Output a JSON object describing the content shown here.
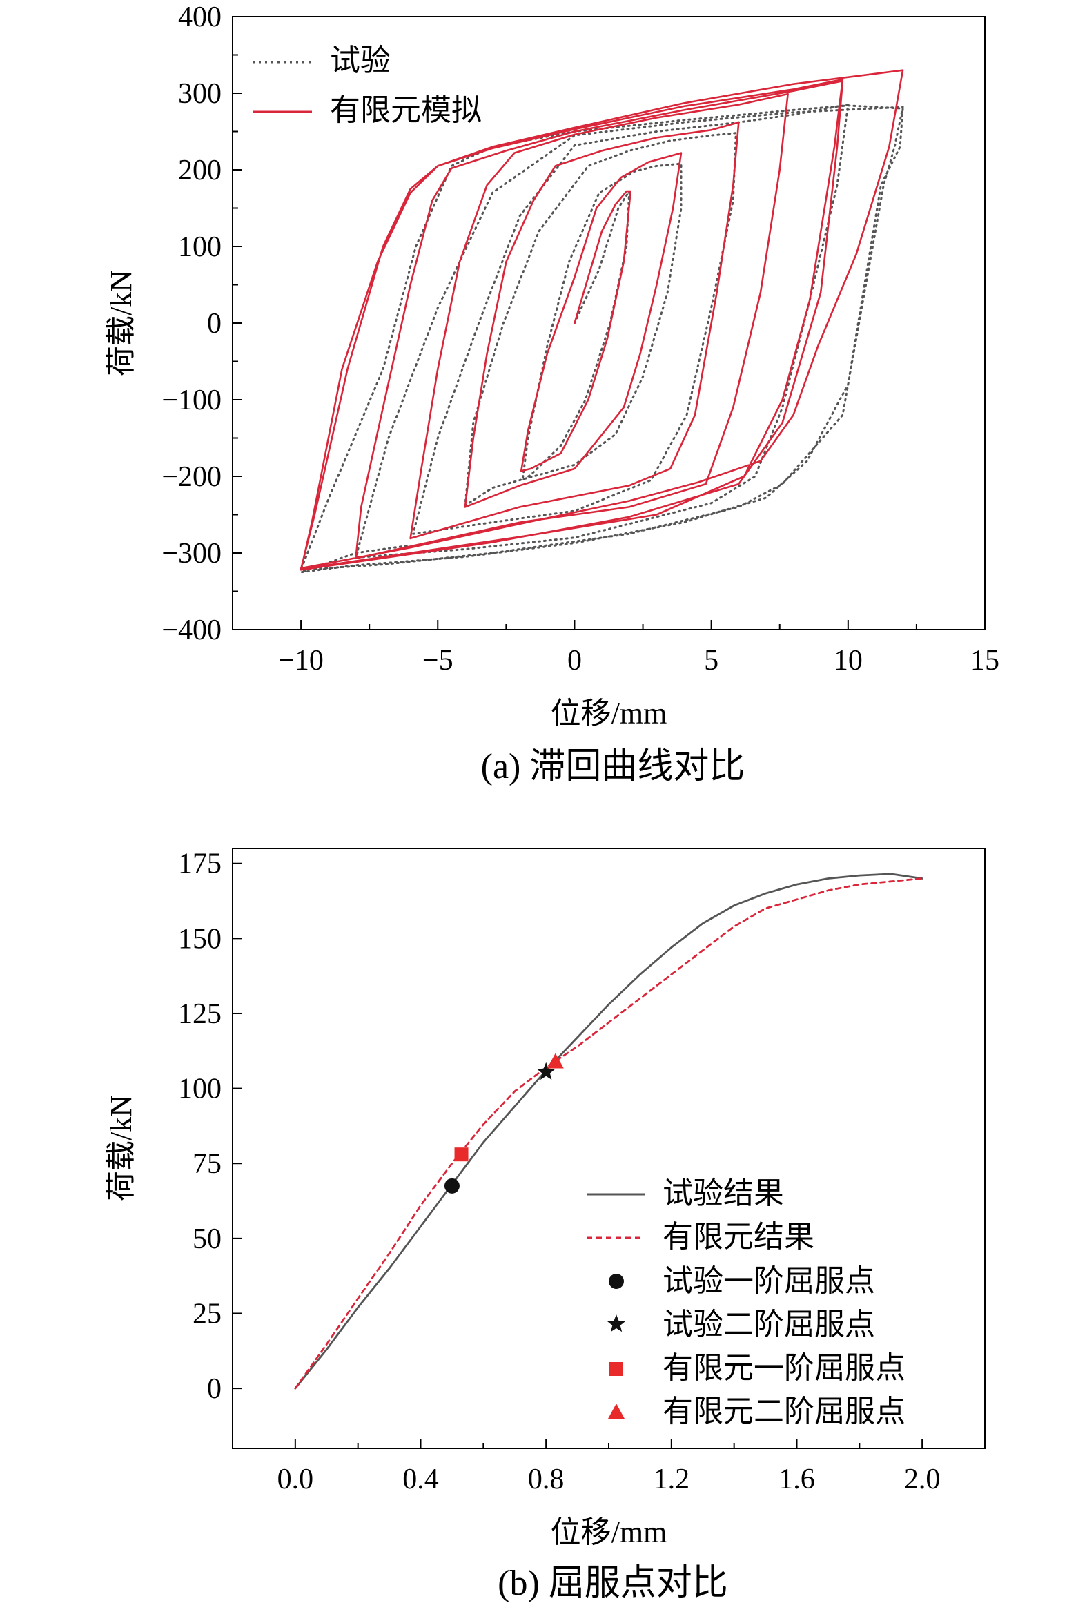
{
  "chart_data": [
    {
      "type": "line",
      "caption": "(a) 滞回曲线对比",
      "xlabel": "位移/mm",
      "ylabel": "荷载/kN",
      "xlim": [
        -12.5,
        15
      ],
      "ylim": [
        -400,
        400
      ],
      "xticks": [
        -10,
        -5,
        0,
        5,
        10,
        15
      ],
      "yticks": [
        -400,
        -300,
        -200,
        -100,
        0,
        100,
        200,
        300,
        400
      ],
      "grid": false,
      "legend_position": "top-left",
      "series": [
        {
          "name": "试验",
          "style": "dotted",
          "color": "#555555",
          "points": [
            [
              0,
              0
            ],
            [
              0.9,
              70
            ],
            [
              1.6,
              150
            ],
            [
              2,
              172
            ],
            [
              1.9,
              100
            ],
            [
              1.3,
              0
            ],
            [
              0.4,
              -100
            ],
            [
              -0.5,
              -160
            ],
            [
              -1.6,
              -198
            ],
            [
              -1.9,
              -205
            ],
            [
              -1.7,
              -150
            ],
            [
              -1,
              -30
            ],
            [
              -0.2,
              80
            ],
            [
              0.9,
              170
            ],
            [
              2.2,
              198
            ],
            [
              3,
              205
            ],
            [
              3.9,
              208
            ],
            [
              3.9,
              150
            ],
            [
              3.4,
              40
            ],
            [
              2.5,
              -70
            ],
            [
              1.5,
              -145
            ],
            [
              0,
              -185
            ],
            [
              -2,
              -205
            ],
            [
              -3,
              -215
            ],
            [
              -4,
              -238
            ],
            [
              -3.7,
              -130
            ],
            [
              -2.6,
              0
            ],
            [
              -1.3,
              120
            ],
            [
              0.5,
              205
            ],
            [
              2,
              225
            ],
            [
              3.5,
              238
            ],
            [
              5,
              245
            ],
            [
              5.9,
              248
            ],
            [
              5.8,
              160
            ],
            [
              5,
              20
            ],
            [
              4.1,
              -120
            ],
            [
              2.8,
              -205
            ],
            [
              0,
              -245
            ],
            [
              -3,
              -260
            ],
            [
              -5.9,
              -275
            ],
            [
              -5,
              -150
            ],
            [
              -3.5,
              0
            ],
            [
              -2,
              140
            ],
            [
              0,
              232
            ],
            [
              3,
              250
            ],
            [
              6,
              262
            ],
            [
              8,
              272
            ],
            [
              10,
              285
            ],
            [
              9.6,
              180
            ],
            [
              8.6,
              30
            ],
            [
              7.6,
              -110
            ],
            [
              6.6,
              -200
            ],
            [
              5,
              -235
            ],
            [
              0,
              -280
            ],
            [
              -4,
              -295
            ],
            [
              -8,
              -306
            ],
            [
              -6.8,
              -150
            ],
            [
              -5,
              20
            ],
            [
              -3,
              170
            ],
            [
              0,
              245
            ],
            [
              4,
              262
            ],
            [
              8,
              275
            ],
            [
              12,
              282
            ],
            [
              11.7,
              230
            ],
            [
              11.3,
              180
            ],
            [
              9.8,
              -120
            ],
            [
              7.6,
              -210
            ],
            [
              6,
              -240
            ],
            [
              2,
              -275
            ],
            [
              -3,
              -300
            ],
            [
              -7,
              -315
            ],
            [
              -10,
              -322
            ],
            [
              -9,
              -230
            ],
            [
              -7,
              -60
            ],
            [
              -5.8,
              100
            ],
            [
              -4.5,
              205
            ],
            [
              -3,
              230
            ],
            [
              0,
              250
            ],
            [
              4,
              265
            ],
            [
              8,
              278
            ],
            [
              10,
              284
            ],
            [
              12,
              280
            ],
            [
              11.9,
              230
            ],
            [
              11.2,
              180
            ],
            [
              10,
              -80
            ],
            [
              8.5,
              -180
            ],
            [
              7,
              -228
            ],
            [
              4,
              -260
            ],
            [
              0,
              -287
            ],
            [
              -4,
              -305
            ],
            [
              -8,
              -316
            ],
            [
              -10,
              -325
            ],
            [
              -10,
              -325
            ],
            [
              -8,
              -300
            ],
            [
              -6,
              -290
            ]
          ]
        },
        {
          "name": "有限元模拟",
          "style": "solid",
          "color": "#d9263a",
          "points": [
            [
              0,
              0
            ],
            [
              1,
              120
            ],
            [
              1.5,
              155
            ],
            [
              1.9,
              172
            ],
            [
              2.05,
              172
            ],
            [
              1.8,
              80
            ],
            [
              1.2,
              -20
            ],
            [
              0.5,
              -100
            ],
            [
              -0.5,
              -170
            ],
            [
              -1.6,
              -190
            ],
            [
              -1.95,
              -193
            ],
            [
              -1.7,
              -140
            ],
            [
              -1,
              -40
            ],
            [
              0,
              60
            ],
            [
              0.8,
              150
            ],
            [
              1.7,
              190
            ],
            [
              2.7,
              210
            ],
            [
              3.9,
              222
            ],
            [
              3.6,
              150
            ],
            [
              3,
              50
            ],
            [
              2.4,
              -40
            ],
            [
              1.8,
              -110
            ],
            [
              0,
              -190
            ],
            [
              -2,
              -212
            ],
            [
              -4,
              -240
            ],
            [
              -3.7,
              -150
            ],
            [
              -3.2,
              -40
            ],
            [
              -2.5,
              80
            ],
            [
              -1.5,
              160
            ],
            [
              -0.7,
              205
            ],
            [
              1,
              225
            ],
            [
              3,
              242
            ],
            [
              5,
              252
            ],
            [
              6,
              262
            ],
            [
              5.8,
              180
            ],
            [
              5.2,
              40
            ],
            [
              4.4,
              -120
            ],
            [
              3.5,
              -190
            ],
            [
              2,
              -212
            ],
            [
              -2,
              -240
            ],
            [
              -6,
              -281
            ],
            [
              -5.6,
              -190
            ],
            [
              -5,
              -60
            ],
            [
              -4.2,
              80
            ],
            [
              -3.2,
              180
            ],
            [
              -2.2,
              222
            ],
            [
              0,
              246
            ],
            [
              3,
              268
            ],
            [
              6,
              285
            ],
            [
              7.8,
              299
            ],
            [
              7.5,
              200
            ],
            [
              6.8,
              40
            ],
            [
              5.8,
              -110
            ],
            [
              4.8,
              -210
            ],
            [
              2,
              -240
            ],
            [
              -2,
              -260
            ],
            [
              -8,
              -307
            ],
            [
              -7.8,
              -240
            ],
            [
              -7,
              -110
            ],
            [
              -6,
              50
            ],
            [
              -5.2,
              160
            ],
            [
              -4.5,
              202
            ],
            [
              -2.5,
              225
            ],
            [
              0,
              250
            ],
            [
              4,
              278
            ],
            [
              8,
              303
            ],
            [
              9.8,
              316
            ],
            [
              9.6,
              230
            ],
            [
              9,
              40
            ],
            [
              7.6,
              -130
            ],
            [
              6,
              -210
            ],
            [
              2,
              -253
            ],
            [
              -3,
              -286
            ],
            [
              -10,
              -322
            ],
            [
              -9.6,
              -260
            ],
            [
              -8.5,
              -60
            ],
            [
              -7.2,
              80
            ],
            [
              -6,
              170
            ],
            [
              -5,
              205
            ],
            [
              -3,
              228
            ],
            [
              0,
              253
            ],
            [
              4,
              283
            ],
            [
              8,
              305
            ],
            [
              9.8,
              318
            ],
            [
              9.5,
              230
            ],
            [
              8.6,
              30
            ],
            [
              7.6,
              -100
            ],
            [
              6.2,
              -200
            ],
            [
              3,
              -250
            ],
            [
              -2,
              -279
            ],
            [
              -10,
              -321
            ],
            [
              -9.5,
              -250
            ],
            [
              -8.3,
              -60
            ],
            [
              -7,
              100
            ],
            [
              -6,
              175
            ],
            [
              -5,
              205
            ],
            [
              -3,
              230
            ],
            [
              0,
              255
            ],
            [
              4,
              287
            ],
            [
              8,
              312
            ],
            [
              12,
              330
            ],
            [
              11.5,
              230
            ],
            [
              10.3,
              90
            ],
            [
              8.9,
              -30
            ],
            [
              8,
              -120
            ],
            [
              6.8,
              -180
            ],
            [
              4.5,
              -208
            ],
            [
              2,
              -232
            ],
            [
              -2,
              -262
            ],
            [
              -6,
              -293
            ],
            [
              -10,
              -320
            ]
          ]
        }
      ]
    },
    {
      "type": "line",
      "caption": "(b) 屈服点对比",
      "xlabel": "位移/mm",
      "ylabel": "荷载/kN",
      "xlim": [
        -0.2,
        2.2
      ],
      "ylim": [
        -20,
        180
      ],
      "xticks": [
        0.0,
        0.4,
        0.8,
        1.2,
        1.6,
        2.0
      ],
      "ytick_values": [
        0,
        25,
        50,
        75,
        100,
        125,
        150,
        175
      ],
      "grid": false,
      "legend_position": "bottom-right",
      "series": [
        {
          "name": "试验结果",
          "style": "solid",
          "color": "#555555",
          "points": [
            [
              0,
              0
            ],
            [
              0.1,
              13
            ],
            [
              0.2,
              27
            ],
            [
              0.3,
              40
            ],
            [
              0.4,
              54
            ],
            [
              0.5,
              68
            ],
            [
              0.6,
              82
            ],
            [
              0.7,
              94
            ],
            [
              0.8,
              106
            ],
            [
              0.9,
              117
            ],
            [
              1.0,
              128
            ],
            [
              1.1,
              138
            ],
            [
              1.2,
              147
            ],
            [
              1.3,
              155
            ],
            [
              1.4,
              161
            ],
            [
              1.5,
              165
            ],
            [
              1.6,
              168
            ],
            [
              1.7,
              170
            ],
            [
              1.8,
              171
            ],
            [
              1.9,
              171.5
            ],
            [
              2.0,
              170
            ]
          ]
        },
        {
          "name": "有限元结果",
          "style": "dashed",
          "color": "#d9263a",
          "points": [
            [
              0,
              0
            ],
            [
              0.1,
              14.7
            ],
            [
              0.2,
              30
            ],
            [
              0.3,
              45
            ],
            [
              0.4,
              61
            ],
            [
              0.5,
              75
            ],
            [
              0.6,
              88
            ],
            [
              0.7,
              99
            ],
            [
              0.8,
              107
            ],
            [
              0.9,
              114
            ],
            [
              1.0,
              122
            ],
            [
              1.1,
              130
            ],
            [
              1.2,
              138
            ],
            [
              1.3,
              146
            ],
            [
              1.4,
              154
            ],
            [
              1.5,
              160
            ],
            [
              1.6,
              163
            ],
            [
              1.7,
              166
            ],
            [
              1.8,
              168
            ],
            [
              1.9,
              169
            ],
            [
              2.0,
              170
            ]
          ]
        }
      ],
      "markers": [
        {
          "name": "试验一阶屈服点",
          "shape": "circle",
          "color": "#111111",
          "x": 0.5,
          "y": 67.5
        },
        {
          "name": "试验二阶屈服点",
          "shape": "star",
          "color": "#111111",
          "x": 0.8,
          "y": 105.5
        },
        {
          "name": "有限元一阶屈服点",
          "shape": "square",
          "color": "#e82a2a",
          "x": 0.53,
          "y": 78
        },
        {
          "name": "有限元二阶屈服点",
          "shape": "triangle",
          "color": "#e82a2a",
          "x": 0.83,
          "y": 109
        }
      ]
    }
  ]
}
